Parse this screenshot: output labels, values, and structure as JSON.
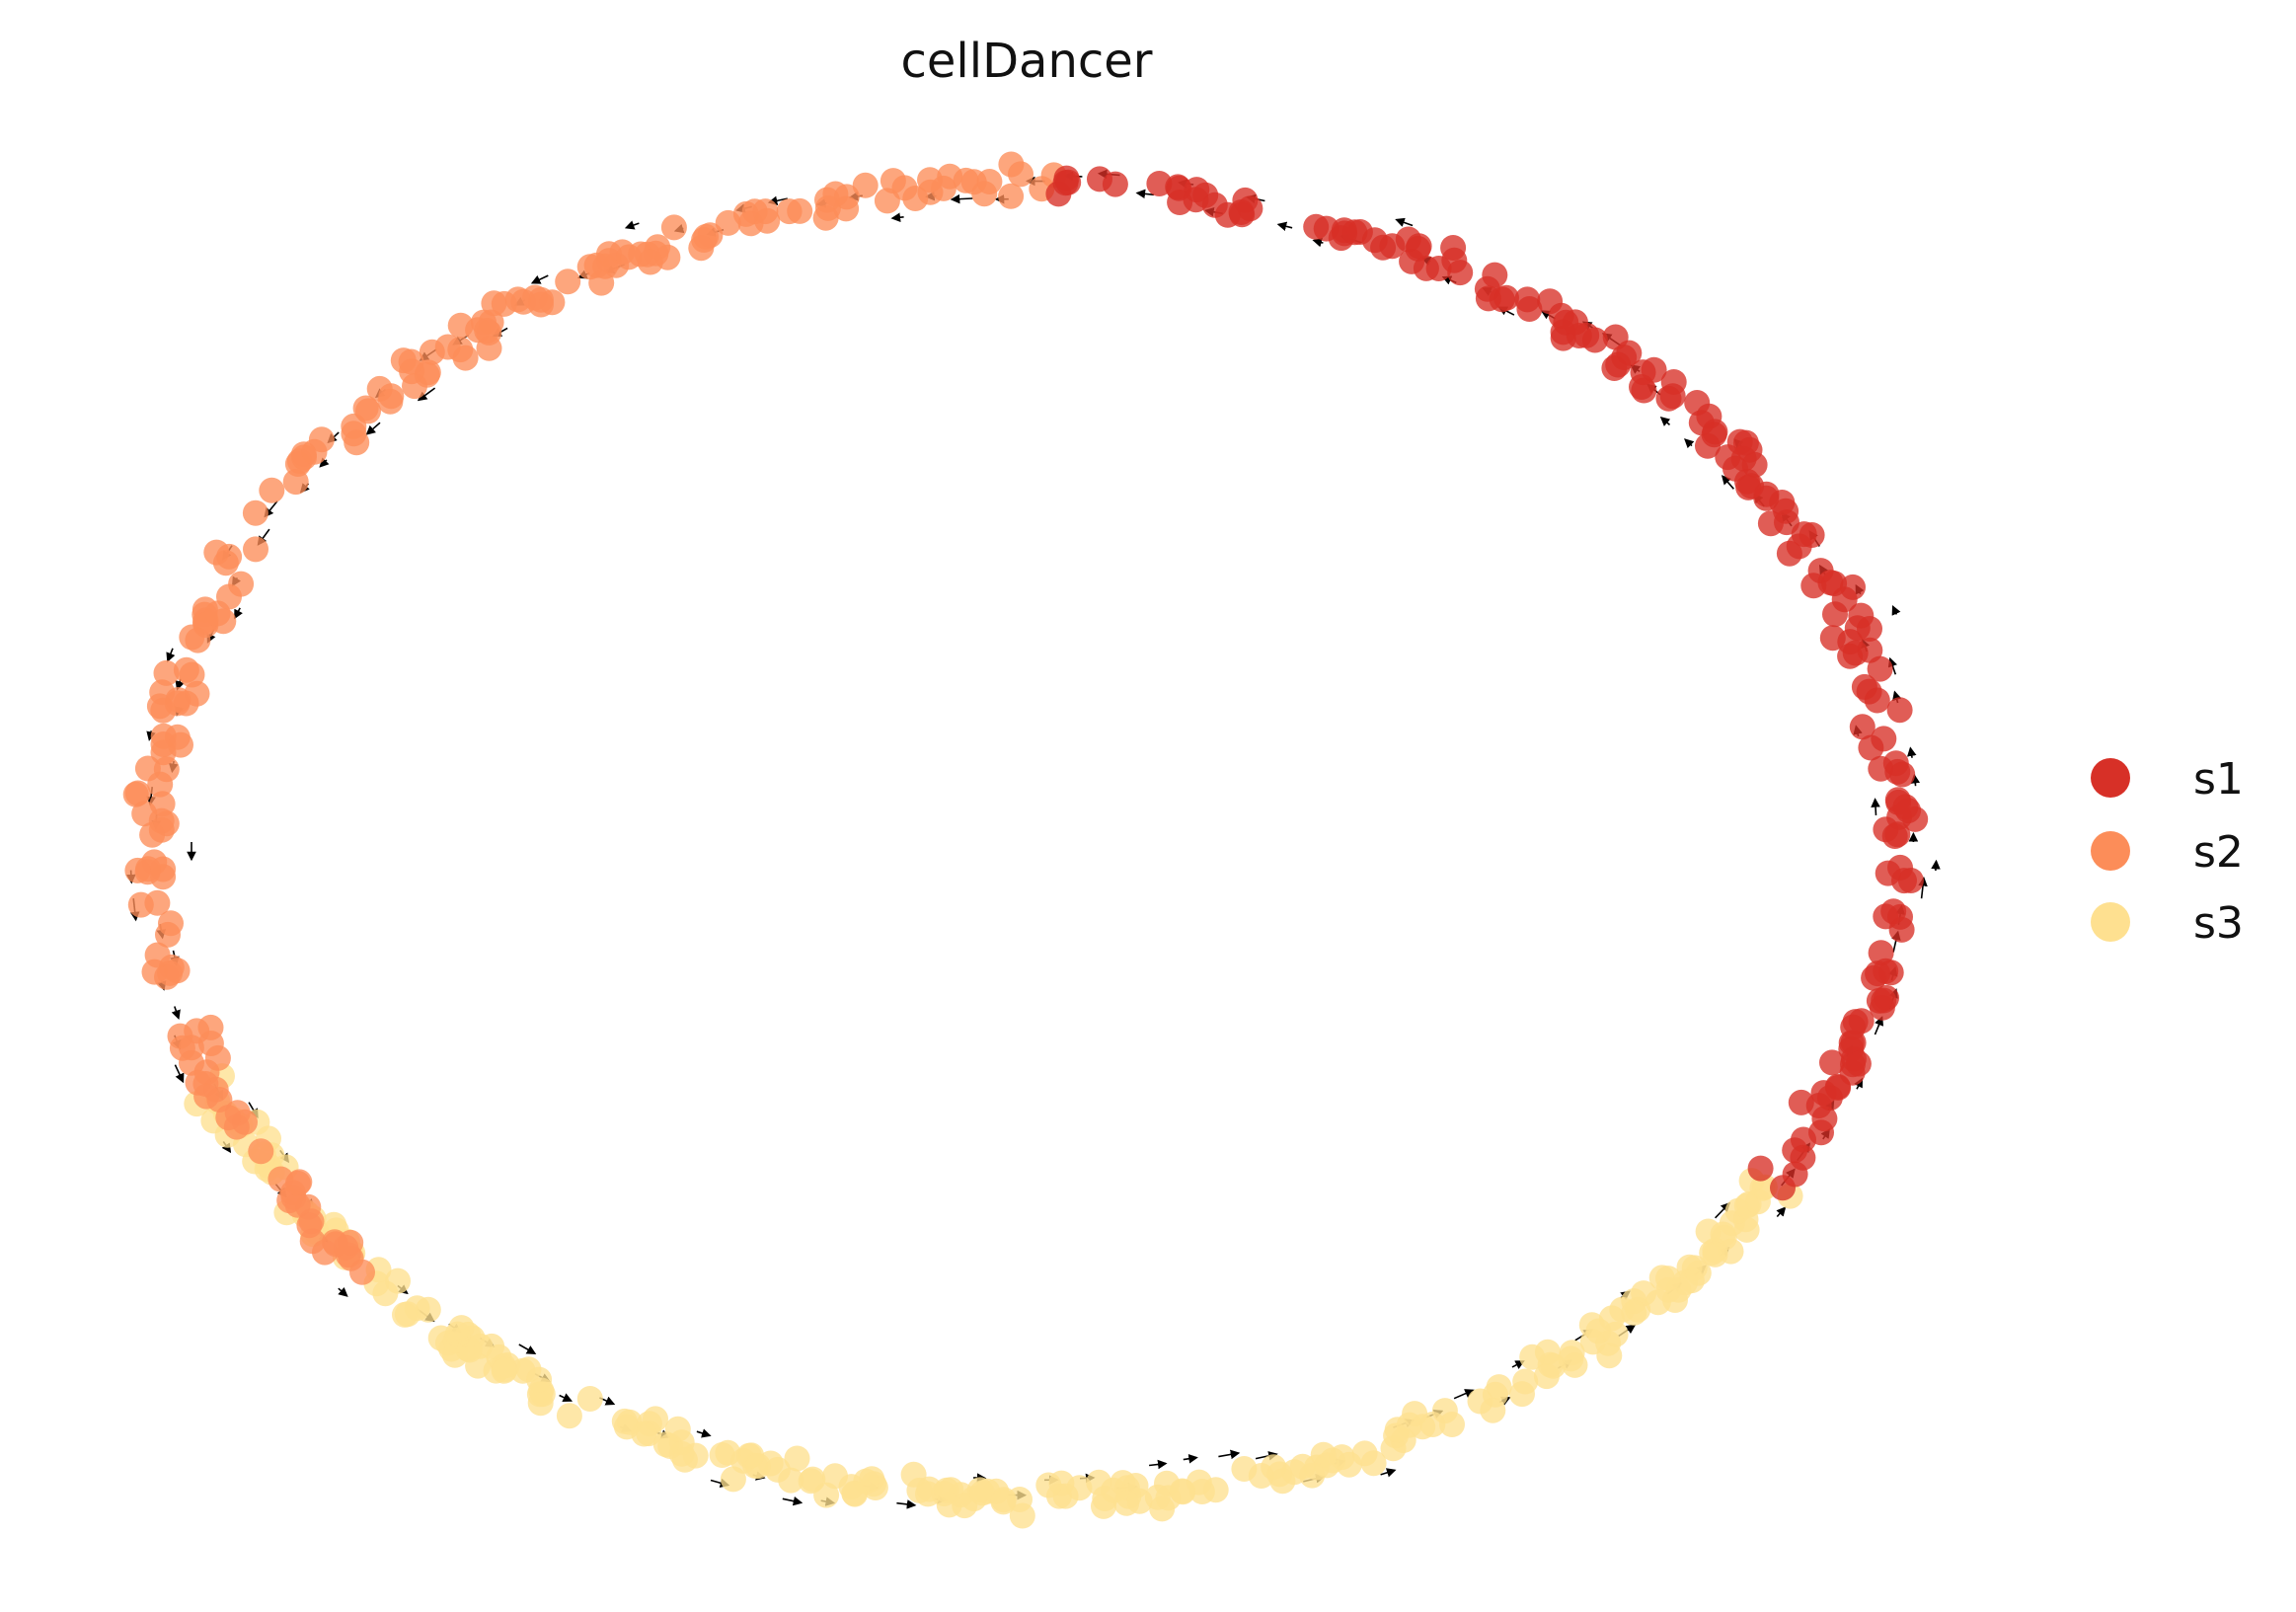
{
  "chart_data": {
    "type": "scatter",
    "title": "cellDancer",
    "xlabel": "",
    "ylabel": "",
    "axes_visible": false,
    "grid": false,
    "legend_position": "right",
    "xlim": [
      -1.15,
      1.15
    ],
    "ylim": [
      -1.0,
      1.0
    ],
    "series": [
      {
        "name": "s1",
        "color": "#d73027",
        "angle_range_deg": [
          -32,
          88
        ],
        "count": 170
      },
      {
        "name": "s2",
        "color": "#fc8d59",
        "angle_range_deg": [
          88,
          222
        ],
        "count": 190
      },
      {
        "name": "s3",
        "color": "#fee090",
        "angle_range_deg": [
          200,
          330
        ],
        "count": 230
      }
    ],
    "arrows": {
      "description": "velocity vectors on grid around the ring, pointing counter-clockwise",
      "direction": "counter-clockwise"
    }
  }
}
